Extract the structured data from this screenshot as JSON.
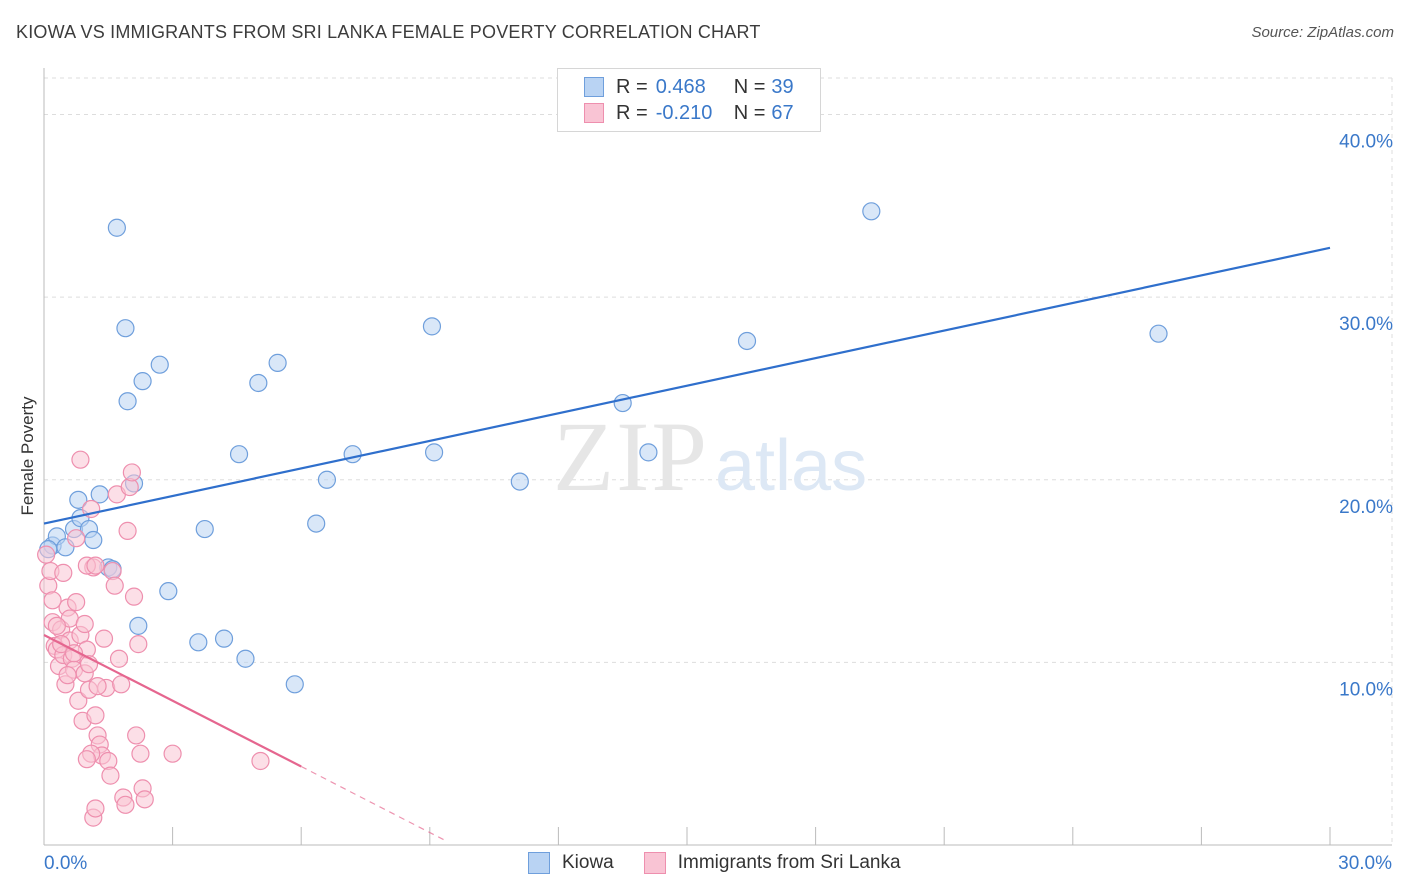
{
  "header": {
    "title": "KIOWA VS IMMIGRANTS FROM SRI LANKA FEMALE POVERTY CORRELATION CHART",
    "source": "Source: ZipAtlas.com"
  },
  "legend": {
    "rows": [
      {
        "r_label": "R =",
        "r_value": "0.468",
        "n_label": "N =",
        "n_value": "39"
      },
      {
        "r_label": "R =",
        "r_value": "-0.210",
        "n_label": "N =",
        "n_value": "67"
      }
    ]
  },
  "bottom_legend": [
    "Kiowa",
    "Immigrants from Sri Lanka"
  ],
  "watermark": {
    "zip": "ZIP",
    "atlas": "atlas"
  },
  "colors": {
    "kiowa_fill": "#b9d3f3",
    "kiowa_stroke": "#6f9fdc",
    "kiowa_line": "#2f6fcc",
    "srilanka_fill": "#f9c4d4",
    "srilanka_stroke": "#ee8fae",
    "srilanka_line": "#e5668f",
    "axis_text": "#3a78c9",
    "grid": "#dddddd"
  },
  "chart_data": {
    "type": "scatter",
    "title": "KIOWA VS IMMIGRANTS FROM SRI LANKA FEMALE POVERTY CORRELATION CHART",
    "xlabel": "",
    "ylabel": "Female Poverty",
    "xlim": [
      0,
      30
    ],
    "ylim": [
      0,
      42
    ],
    "x_tick_labels": [
      "0.0%",
      "30.0%"
    ],
    "y_ticks": [
      10,
      20,
      30,
      40
    ],
    "y_tick_labels": [
      "10.0%",
      "20.0%",
      "30.0%",
      "40.0%"
    ],
    "grid": true,
    "series": [
      {
        "name": "Kiowa",
        "r": 0.468,
        "n": 39,
        "trend": {
          "x": [
            0,
            30
          ],
          "y": [
            17.6,
            32.7
          ],
          "dashed_to": null
        },
        "points": [
          [
            0.2,
            16.4
          ],
          [
            0.3,
            16.9
          ],
          [
            0.5,
            16.3
          ],
          [
            0.7,
            17.3
          ],
          [
            0.8,
            18.9
          ],
          [
            0.85,
            17.9
          ],
          [
            1.05,
            17.3
          ],
          [
            1.15,
            16.7
          ],
          [
            1.3,
            19.2
          ],
          [
            1.5,
            15.2
          ],
          [
            1.6,
            15.1
          ],
          [
            1.7,
            33.8
          ],
          [
            1.9,
            28.3
          ],
          [
            1.95,
            24.3
          ],
          [
            2.1,
            19.8
          ],
          [
            2.2,
            12.0
          ],
          [
            2.3,
            25.4
          ],
          [
            2.7,
            26.3
          ],
          [
            2.9,
            13.9
          ],
          [
            3.6,
            11.1
          ],
          [
            3.75,
            17.3
          ],
          [
            4.2,
            11.3
          ],
          [
            4.55,
            21.4
          ],
          [
            4.7,
            10.2
          ],
          [
            5.0,
            25.3
          ],
          [
            5.45,
            26.4
          ],
          [
            5.85,
            8.8
          ],
          [
            6.35,
            17.6
          ],
          [
            6.6,
            20.0
          ],
          [
            7.2,
            21.4
          ],
          [
            9.05,
            28.4
          ],
          [
            9.1,
            21.5
          ],
          [
            11.1,
            19.9
          ],
          [
            13.5,
            24.2
          ],
          [
            14.1,
            21.5
          ],
          [
            16.4,
            27.6
          ],
          [
            19.3,
            34.7
          ],
          [
            26.0,
            28.0
          ],
          [
            0.1,
            16.2
          ]
        ]
      },
      {
        "name": "Immigrants from Sri Lanka",
        "r": -0.21,
        "n": 67,
        "trend": {
          "x": [
            0,
            6.0
          ],
          "y": [
            11.5,
            4.3
          ],
          "dashed_to": {
            "x": 9.4,
            "y": 0.2
          }
        },
        "points": [
          [
            0.05,
            15.9
          ],
          [
            0.1,
            14.2
          ],
          [
            0.15,
            15.0
          ],
          [
            0.2,
            12.2
          ],
          [
            0.25,
            10.9
          ],
          [
            0.3,
            10.7
          ],
          [
            0.35,
            9.8
          ],
          [
            0.4,
            11.8
          ],
          [
            0.45,
            10.4
          ],
          [
            0.5,
            8.8
          ],
          [
            0.55,
            13.0
          ],
          [
            0.6,
            11.2
          ],
          [
            0.65,
            10.2
          ],
          [
            0.7,
            9.6
          ],
          [
            0.75,
            13.3
          ],
          [
            0.8,
            7.9
          ],
          [
            0.85,
            11.5
          ],
          [
            0.9,
            6.8
          ],
          [
            0.95,
            9.4
          ],
          [
            1.0,
            10.7
          ],
          [
            1.05,
            8.5
          ],
          [
            1.1,
            18.4
          ],
          [
            1.15,
            15.2
          ],
          [
            1.2,
            7.1
          ],
          [
            1.25,
            6.0
          ],
          [
            1.3,
            5.5
          ],
          [
            1.35,
            4.9
          ],
          [
            1.4,
            11.3
          ],
          [
            1.45,
            8.6
          ],
          [
            1.5,
            4.6
          ],
          [
            1.55,
            3.8
          ],
          [
            1.6,
            15.0
          ],
          [
            1.65,
            14.2
          ],
          [
            1.7,
            19.2
          ],
          [
            1.75,
            10.2
          ],
          [
            1.8,
            8.8
          ],
          [
            1.85,
            2.6
          ],
          [
            1.9,
            2.2
          ],
          [
            1.95,
            17.2
          ],
          [
            2.0,
            19.6
          ],
          [
            2.05,
            20.4
          ],
          [
            2.1,
            13.6
          ],
          [
            2.15,
            6.0
          ],
          [
            2.2,
            11.0
          ],
          [
            2.25,
            5.0
          ],
          [
            2.3,
            3.1
          ],
          [
            2.35,
            2.5
          ],
          [
            0.85,
            21.1
          ],
          [
            0.75,
            16.8
          ],
          [
            1.0,
            15.3
          ],
          [
            0.6,
            12.4
          ],
          [
            0.4,
            11.0
          ],
          [
            0.95,
            12.1
          ],
          [
            1.05,
            9.9
          ],
          [
            0.7,
            10.5
          ],
          [
            1.2,
            15.3
          ],
          [
            1.25,
            8.7
          ],
          [
            1.1,
            5.0
          ],
          [
            1.0,
            4.7
          ],
          [
            1.15,
            1.5
          ],
          [
            1.2,
            2.0
          ],
          [
            3.0,
            5.0
          ],
          [
            5.05,
            4.6
          ],
          [
            0.3,
            12.0
          ],
          [
            0.55,
            9.3
          ],
          [
            0.45,
            14.9
          ],
          [
            0.2,
            13.4
          ]
        ]
      }
    ]
  }
}
